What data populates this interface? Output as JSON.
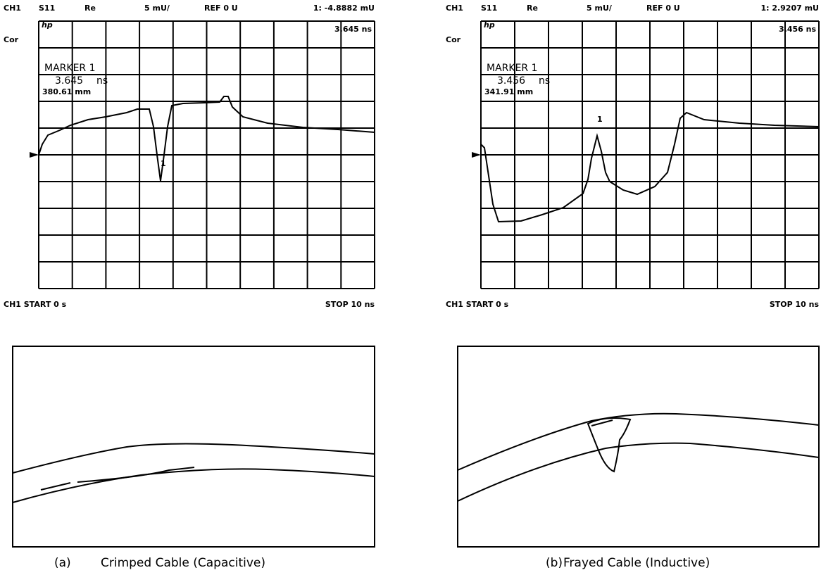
{
  "panels": [
    {
      "header": {
        "channel": "CH1",
        "parameter": "S11",
        "format": "Re",
        "scale": "5 mU/",
        "reference": "REF 0 U",
        "marker_readout": "1: -4.8882 mU"
      },
      "logo": "hp",
      "marker_time": "3.645 ns",
      "correction": "Cor",
      "marker_box": {
        "title": "MARKER 1",
        "time": "3.645",
        "time_unit": "ns",
        "distance": "380.61 mm"
      },
      "marker_label": "1",
      "footer": {
        "start": "CH1 START 0 s",
        "stop": "STOP 10 ns"
      },
      "caption": {
        "label": "(a)",
        "text": "Crimped Cable (Capacitive)"
      }
    },
    {
      "header": {
        "channel": "CH1",
        "parameter": "S11",
        "format": "Re",
        "scale": "5 mU/",
        "reference": "REF 0 U",
        "marker_readout": "1: 2.9207 mU"
      },
      "logo": "hp",
      "marker_time": "3.456 ns",
      "correction": "Cor",
      "marker_box": {
        "title": "MARKER 1",
        "time": "3.456",
        "time_unit": "ns",
        "distance": "341.91 mm"
      },
      "marker_label": "1",
      "footer": {
        "start": "CH1 START 0 s",
        "stop": "STOP 10 ns"
      },
      "caption": {
        "label": "(b)",
        "text": "Frayed Cable (Inductive)"
      }
    }
  ]
}
